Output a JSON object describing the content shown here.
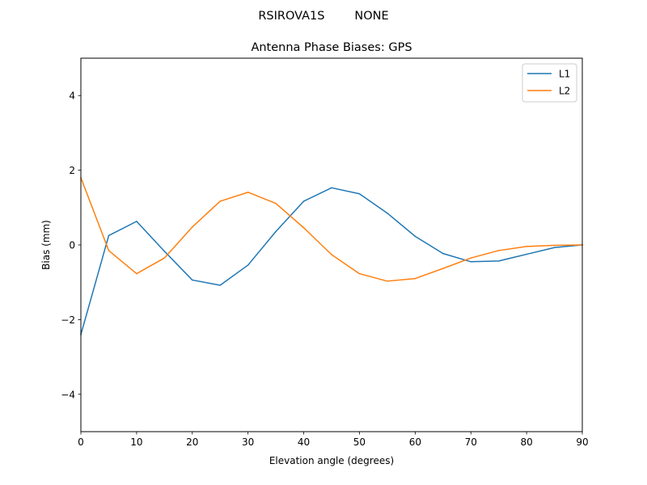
{
  "figure": {
    "suptitle": "RSIROVA1S        NONE"
  },
  "chart_data": {
    "type": "line",
    "title": "Antenna Phase Biases: GPS",
    "xlabel": "Elevation angle (degrees)",
    "ylabel": "Bias (mm)",
    "xlim": [
      0,
      90
    ],
    "ylim": [
      -5,
      5
    ],
    "xticks": [
      0,
      10,
      20,
      30,
      40,
      50,
      60,
      70,
      80,
      90
    ],
    "yticks": [
      -4,
      -2,
      0,
      2,
      4
    ],
    "ytick_labels": [
      "−4",
      "−2",
      "0",
      "2",
      "4"
    ],
    "grid": false,
    "legend_position": "top-right",
    "x": [
      0,
      5,
      10,
      15,
      20,
      25,
      30,
      35,
      40,
      45,
      50,
      55,
      60,
      65,
      70,
      75,
      80,
      85,
      90
    ],
    "series": [
      {
        "name": "L1",
        "color": "#1f77b4",
        "values": [
          -2.4,
          0.25,
          0.63,
          -0.17,
          -0.94,
          -1.08,
          -0.54,
          0.36,
          1.17,
          1.53,
          1.37,
          0.85,
          0.23,
          -0.23,
          -0.45,
          -0.43,
          -0.25,
          -0.07,
          0.0
        ]
      },
      {
        "name": "L2",
        "color": "#ff7f0e",
        "values": [
          1.8,
          -0.15,
          -0.77,
          -0.35,
          0.48,
          1.17,
          1.41,
          1.11,
          0.46,
          -0.26,
          -0.77,
          -0.97,
          -0.9,
          -0.63,
          -0.35,
          -0.15,
          -0.04,
          -0.01,
          0.0
        ]
      }
    ]
  }
}
